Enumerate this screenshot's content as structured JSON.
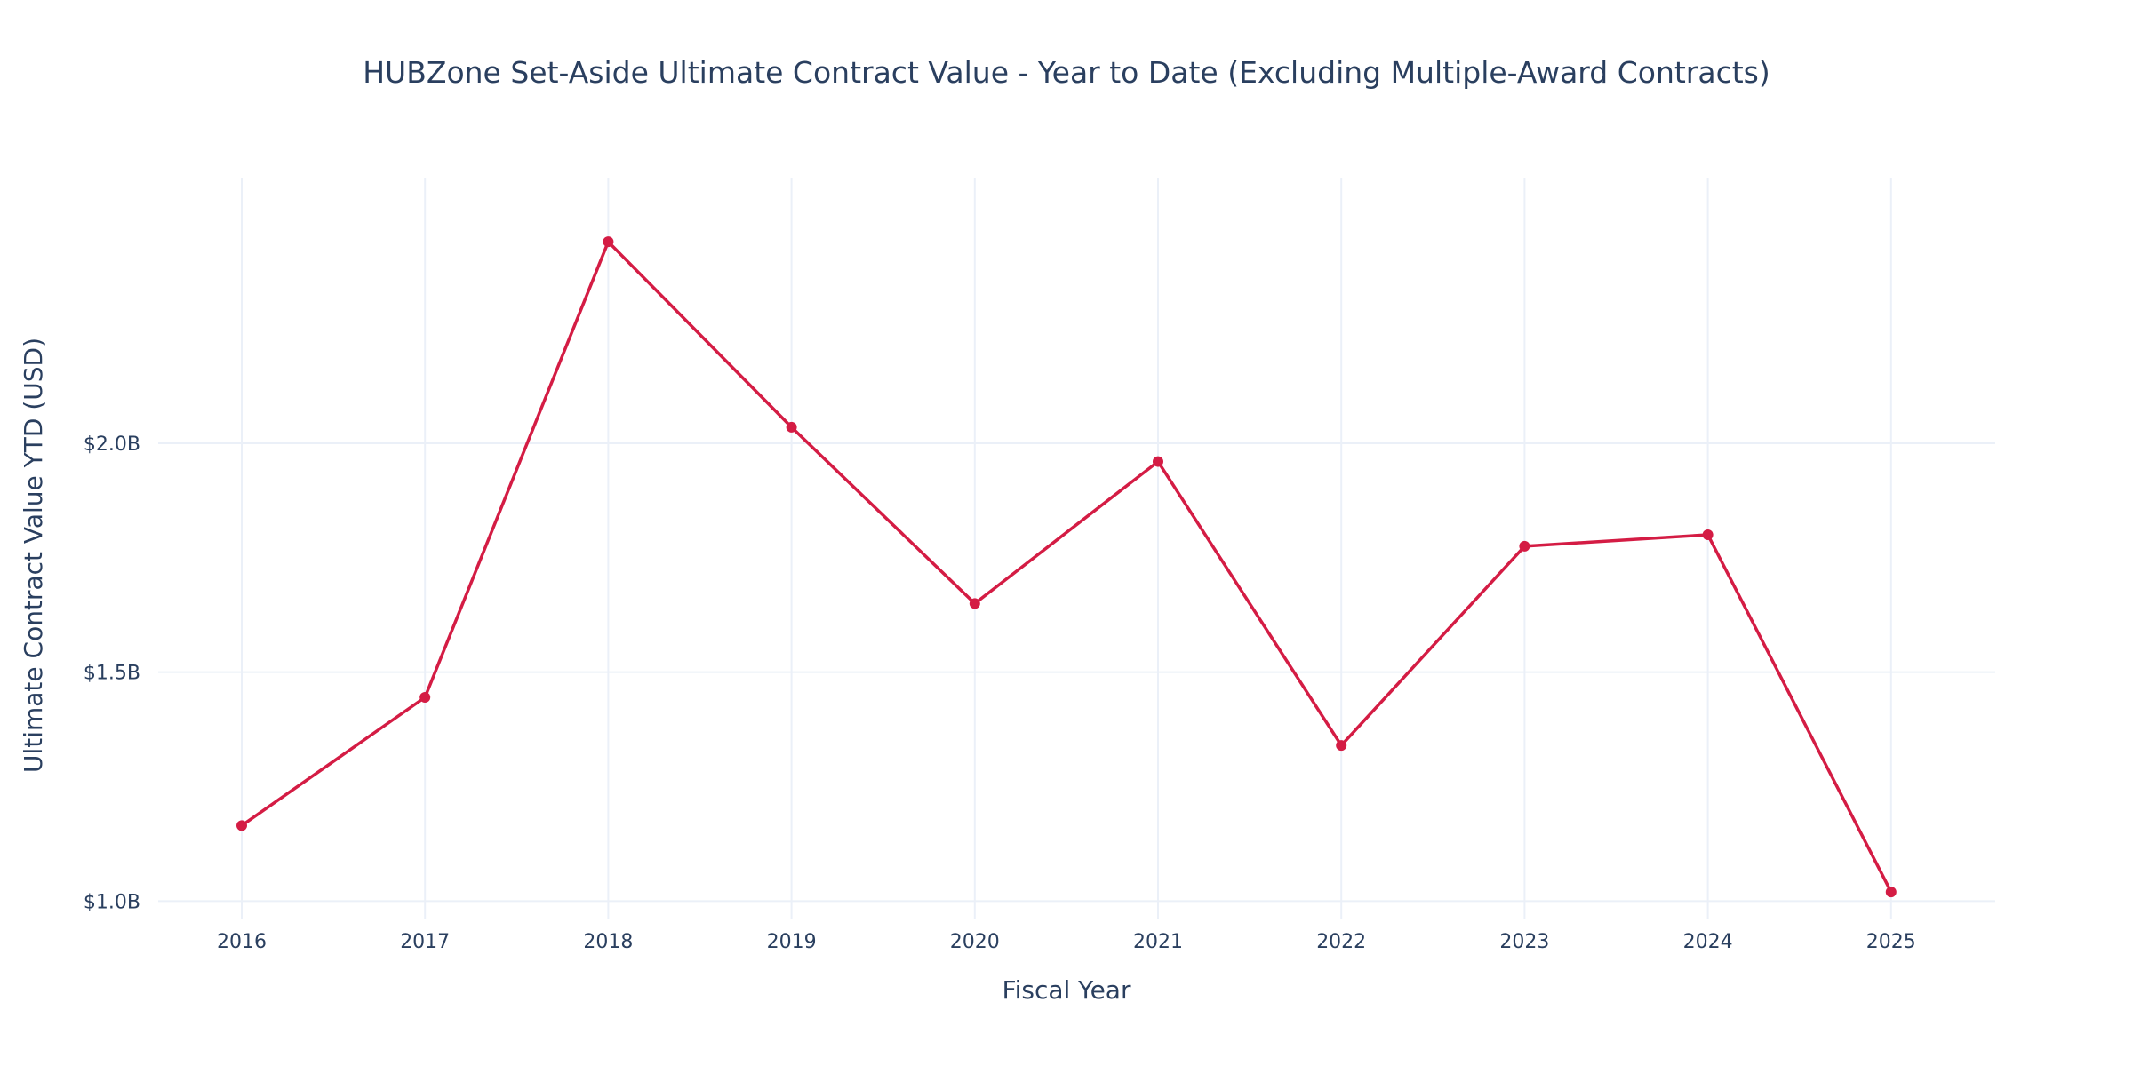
{
  "chart_data": {
    "type": "line",
    "title": "HUBZone Set-Aside Ultimate Contract Value - Year to Date (Excluding Multiple-Award Contracts)",
    "xlabel": "Fiscal Year",
    "ylabel": "Ultimate Contract Value YTD (USD)",
    "x": [
      "2016",
      "2017",
      "2018",
      "2019",
      "2020",
      "2021",
      "2022",
      "2023",
      "2024",
      "2025"
    ],
    "y_ticks": [
      {
        "value": 1.0,
        "label": "$1.0B"
      },
      {
        "value": 1.5,
        "label": "$1.5B"
      },
      {
        "value": 2.0,
        "label": "$2.0B"
      }
    ],
    "y_unit": "billions USD",
    "ylim": [
      0.96,
      2.58
    ],
    "grid": true,
    "series": [
      {
        "values": [
          1.165,
          1.445,
          2.44,
          2.035,
          1.65,
          1.96,
          1.34,
          1.775,
          1.8,
          1.02
        ],
        "color": "#d41c44"
      }
    ]
  }
}
